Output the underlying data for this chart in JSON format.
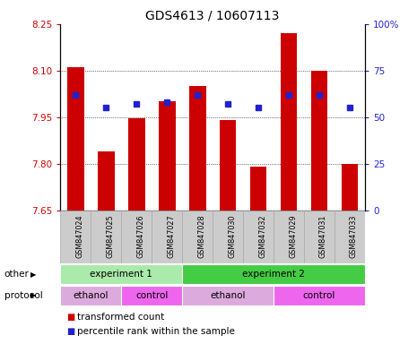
{
  "title": "GDS4613 / 10607113",
  "samples": [
    "GSM847024",
    "GSM847025",
    "GSM847026",
    "GSM847027",
    "GSM847028",
    "GSM847030",
    "GSM847032",
    "GSM847029",
    "GSM847031",
    "GSM847033"
  ],
  "bar_values": [
    8.11,
    7.84,
    7.945,
    8.0,
    8.05,
    7.94,
    7.79,
    8.22,
    8.1,
    7.8
  ],
  "percentile_values": [
    62,
    55,
    57,
    58,
    62,
    57,
    55,
    62,
    62,
    55
  ],
  "y_min": 7.65,
  "y_max": 8.25,
  "y_ticks": [
    7.65,
    7.8,
    7.95,
    8.1,
    8.25
  ],
  "right_y_ticks": [
    0,
    25,
    50,
    75,
    100
  ],
  "right_y_labels": [
    "0",
    "25",
    "50",
    "75",
    "100%"
  ],
  "bar_color": "#cc0000",
  "dot_color": "#2222cc",
  "title_fontsize": 10,
  "axis_color_left": "#cc0000",
  "axis_color_right": "#2222cc",
  "other_row": [
    {
      "label": "experiment 1",
      "start": 0,
      "end": 4,
      "color": "#aaeaaa"
    },
    {
      "label": "experiment 2",
      "start": 4,
      "end": 10,
      "color": "#44cc44"
    }
  ],
  "protocol_row": [
    {
      "label": "ethanol",
      "start": 0,
      "end": 2,
      "color": "#ddaadd"
    },
    {
      "label": "control",
      "start": 2,
      "end": 4,
      "color": "#ee66ee"
    },
    {
      "label": "ethanol",
      "start": 4,
      "end": 7,
      "color": "#ddaadd"
    },
    {
      "label": "control",
      "start": 7,
      "end": 10,
      "color": "#ee66ee"
    }
  ],
  "legend_items": [
    {
      "label": "transformed count",
      "color": "#cc0000"
    },
    {
      "label": "percentile rank within the sample",
      "color": "#2222cc"
    }
  ],
  "other_label": "other",
  "protocol_label": "protocol",
  "sample_bg_color": "#cccccc",
  "sample_border_color": "#aaaaaa",
  "bg_color": "#ffffff"
}
